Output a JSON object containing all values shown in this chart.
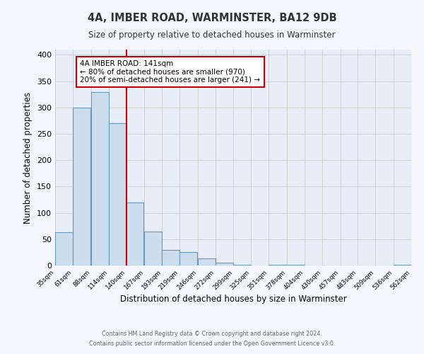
{
  "title": "4A, IMBER ROAD, WARMINSTER, BA12 9DB",
  "subtitle": "Size of property relative to detached houses in Warminster",
  "xlabel": "Distribution of detached houses by size in Warminster",
  "ylabel": "Number of detached properties",
  "bar_color": "#ccdded",
  "bar_edge_color": "#6699bb",
  "grid_color": "#cccccc",
  "background_color": "#e8eef8",
  "fig_background": "#f5f7fc",
  "bins": [
    35,
    61,
    88,
    114,
    140,
    167,
    193,
    219,
    246,
    272,
    299,
    325,
    351,
    378,
    404,
    430,
    457,
    483,
    509,
    536,
    562
  ],
  "counts": [
    63,
    300,
    330,
    270,
    120,
    65,
    30,
    25,
    14,
    5,
    2,
    0,
    2,
    1,
    0,
    0,
    0,
    0,
    0,
    1
  ],
  "property_size": 141,
  "property_line_color": "#cc0000",
  "annotation_line1": "4A IMBER ROAD: 141sqm",
  "annotation_line2": "← 80% of detached houses are smaller (970)",
  "annotation_line3": "20% of semi-detached houses are larger (241) →",
  "annotation_box_color": "#ffffff",
  "annotation_box_edge": "#cc0000",
  "ylim": [
    0,
    410
  ],
  "yticks": [
    0,
    50,
    100,
    150,
    200,
    250,
    300,
    350,
    400
  ],
  "footer_line1": "Contains HM Land Registry data © Crown copyright and database right 2024.",
  "footer_line2": "Contains public sector information licensed under the Open Government Licence v3.0."
}
